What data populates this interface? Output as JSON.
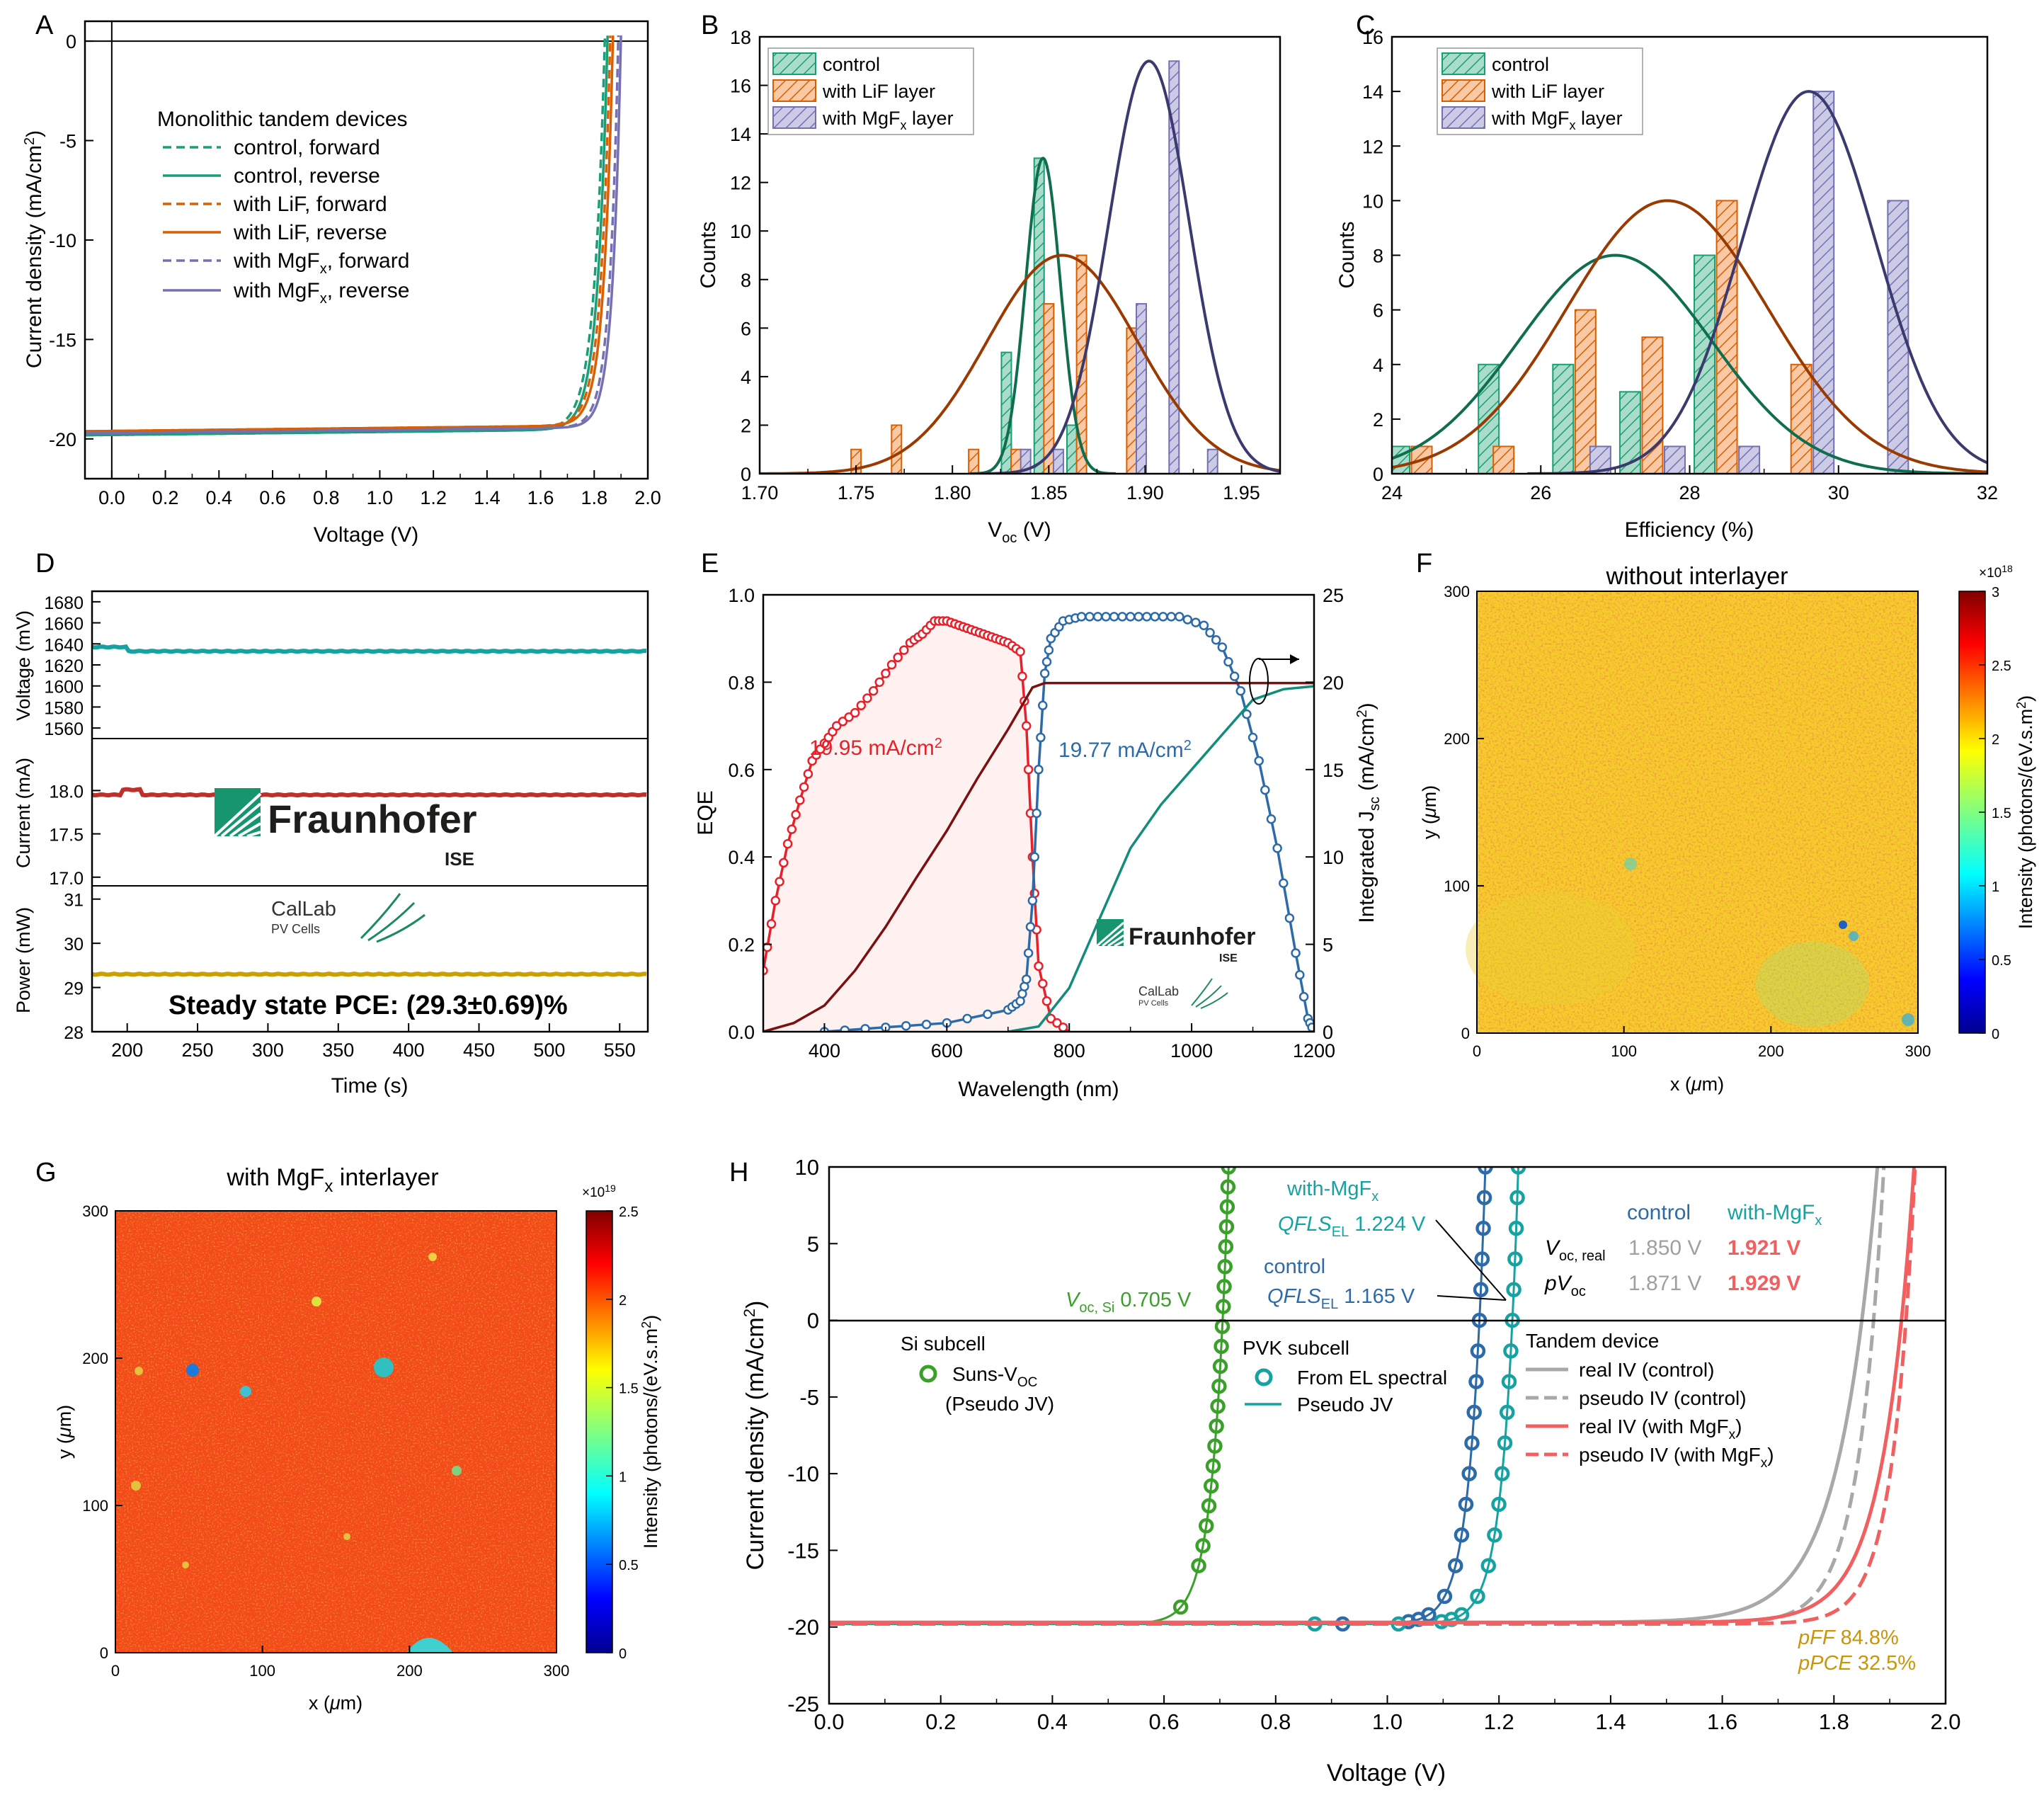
{
  "chart_data": [
    {
      "panel": "A",
      "type": "line",
      "xlabel": "Voltage (V)",
      "ylabel": "Current density (mA/cm²)",
      "xlim": [
        -0.1,
        2.0
      ],
      "ylim": [
        -22,
        1
      ],
      "xticks": [
        "0.0",
        "0.2",
        "0.4",
        "0.6",
        "0.8",
        "1.0",
        "1.2",
        "1.4",
        "1.6",
        "1.8",
        "2.0"
      ],
      "yticks": [
        "0",
        "-5",
        "-10",
        "-15",
        "-20"
      ],
      "legend_title": "Monolithic tandem devices",
      "series": [
        {
          "name": "control, forward",
          "color": "#1a9e77",
          "dash": true,
          "voc": 1.84,
          "jsc": -19.8,
          "n": 0.04
        },
        {
          "name": "control, reverse",
          "color": "#1a9e77",
          "dash": false,
          "voc": 1.85,
          "jsc": -19.8,
          "n": 0.038
        },
        {
          "name": "with LiF, forward",
          "color": "#d95f02",
          "dash": true,
          "voc": 1.86,
          "jsc": -19.6,
          "n": 0.036
        },
        {
          "name": "with LiF, reverse",
          "color": "#d95f02",
          "dash": false,
          "voc": 1.87,
          "jsc": -19.6,
          "n": 0.035
        },
        {
          "name": "with MgFx, forward",
          "color": "#7570b3",
          "dash": true,
          "voc": 1.89,
          "jsc": -19.7,
          "n": 0.033
        },
        {
          "name": "with MgFx, reverse",
          "color": "#7570b3",
          "dash": false,
          "voc": 1.9,
          "jsc": -19.7,
          "n": 0.032
        }
      ]
    },
    {
      "panel": "B",
      "type": "bar",
      "xlabel": "Voc (V)",
      "ylabel": "Counts",
      "xlim": [
        1.7,
        1.97
      ],
      "ylim": [
        0,
        18
      ],
      "xticks": [
        "1.70",
        "1.75",
        "1.80",
        "1.85",
        "1.90",
        "1.95"
      ],
      "yticks": [
        "0",
        "2",
        "4",
        "6",
        "8",
        "10",
        "12",
        "14",
        "16",
        "18"
      ],
      "series": [
        {
          "name": "control",
          "color": "#1a9e77",
          "bars": [
            [
              1.828,
              5
            ],
            [
              1.845,
              13
            ],
            [
              1.862,
              2
            ]
          ],
          "fit": {
            "mu": 1.847,
            "sigma": 0.009,
            "amp": 13
          }
        },
        {
          "name": "with LiF layer",
          "color": "#d95f02",
          "bars": [
            [
              1.75,
              1
            ],
            [
              1.771,
              2
            ],
            [
              1.811,
              1
            ],
            [
              1.833,
              1
            ],
            [
              1.85,
              7
            ],
            [
              1.867,
              9
            ],
            [
              1.893,
              6
            ]
          ],
          "fit": {
            "mu": 1.857,
            "sigma": 0.039,
            "amp": 9
          }
        },
        {
          "name": "with MgFx layer",
          "color": "#7570b3",
          "bars": [
            [
              1.838,
              1
            ],
            [
              1.855,
              1
            ],
            [
              1.898,
              7
            ],
            [
              1.915,
              17
            ],
            [
              1.935,
              1
            ]
          ],
          "fit": {
            "mu": 1.902,
            "sigma": 0.021,
            "amp": 17
          }
        }
      ]
    },
    {
      "panel": "C",
      "type": "bar",
      "xlabel": "Efficiency (%)",
      "ylabel": "Counts",
      "xlim": [
        24,
        32
      ],
      "ylim": [
        0,
        16
      ],
      "xticks": [
        "24",
        "26",
        "28",
        "30",
        "32"
      ],
      "yticks": [
        "0",
        "2",
        "4",
        "6",
        "8",
        "10",
        "12",
        "14",
        "16"
      ],
      "series": [
        {
          "name": "control",
          "color": "#1a9e77",
          "bars": [
            [
              24.1,
              1
            ],
            [
              25.3,
              4
            ],
            [
              26.3,
              4
            ],
            [
              27.2,
              3
            ],
            [
              28.2,
              8
            ]
          ],
          "fit": {
            "mu": 27.0,
            "sigma": 1.3,
            "amp": 8
          }
        },
        {
          "name": "with LiF layer",
          "color": "#d95f02",
          "bars": [
            [
              24.4,
              1
            ],
            [
              25.5,
              1
            ],
            [
              26.6,
              6
            ],
            [
              27.5,
              5
            ],
            [
              28.5,
              10
            ],
            [
              29.5,
              4
            ]
          ],
          "fit": {
            "mu": 27.7,
            "sigma": 1.35,
            "amp": 10
          }
        },
        {
          "name": "with MgFx layer",
          "color": "#7570b3",
          "bars": [
            [
              26.8,
              1
            ],
            [
              27.8,
              1
            ],
            [
              28.8,
              1
            ],
            [
              29.8,
              14
            ],
            [
              30.8,
              10
            ]
          ],
          "fit": {
            "mu": 29.6,
            "sigma": 0.9,
            "amp": 14
          }
        }
      ]
    },
    {
      "panel": "D",
      "type": "line",
      "xlabel": "Time (s)",
      "xlim": [
        175,
        570
      ],
      "xticks": [
        "200",
        "250",
        "300",
        "350",
        "400",
        "450",
        "500",
        "550"
      ],
      "annotation": "Steady state PCE: (29.3±0.69)%",
      "series": [
        {
          "name": "Voltage (mV)",
          "color": "#17a2a2",
          "value": 1633,
          "ylim": [
            1550,
            1690
          ],
          "yticks": [
            "1560",
            "1580",
            "1600",
            "1620",
            "1640",
            "1660",
            "1680"
          ]
        },
        {
          "name": "Current (mA)",
          "color": "#c0302a",
          "value": 17.95,
          "ylim": [
            16.9,
            18.6
          ],
          "yticks": [
            "17.0",
            "17.5",
            "18.0"
          ]
        },
        {
          "name": "Power (mW)",
          "color": "#c8a000",
          "value": 29.3,
          "ylim": [
            28,
            31.3
          ],
          "yticks": [
            "28",
            "29",
            "30",
            "31"
          ]
        }
      ]
    },
    {
      "panel": "E",
      "type": "line",
      "xlabel": "Wavelength (nm)",
      "ylabel": "EQE",
      "ylabel_right": "Integrated Jsc (mA/cm²)",
      "xlim": [
        300,
        1200
      ],
      "ylim": [
        0,
        1.0
      ],
      "ylim_right": [
        0,
        25
      ],
      "xticks": [
        "400",
        "600",
        "800",
        "1000",
        "1200"
      ],
      "yticks": [
        "0.0",
        "0.2",
        "0.4",
        "0.6",
        "0.8",
        "1.0"
      ],
      "yticks_right": [
        "0",
        "5",
        "10",
        "15",
        "20",
        "25"
      ],
      "series": [
        {
          "name": "19.95 mA/cm²",
          "color": "#e8202a",
          "x": [
            300,
            320,
            340,
            360,
            380,
            400,
            420,
            450,
            480,
            510,
            540,
            560,
            580,
            600,
            620,
            640,
            660,
            680,
            700,
            720,
            730,
            740,
            750,
            770,
            800
          ],
          "y": [
            0.14,
            0.3,
            0.43,
            0.53,
            0.62,
            0.66,
            0.7,
            0.73,
            0.78,
            0.84,
            0.89,
            0.91,
            0.94,
            0.94,
            0.93,
            0.92,
            0.91,
            0.9,
            0.89,
            0.87,
            0.7,
            0.4,
            0.15,
            0.03,
            0.0
          ]
        },
        {
          "name": "19.77 mA/cm²",
          "color": "#2d6aa8",
          "x": [
            400,
            500,
            600,
            700,
            720,
            730,
            740,
            750,
            760,
            770,
            790,
            820,
            860,
            900,
            940,
            980,
            1020,
            1050,
            1080,
            1110,
            1140,
            1170,
            1190,
            1200
          ],
          "y": [
            0.0,
            0.01,
            0.02,
            0.05,
            0.07,
            0.12,
            0.3,
            0.6,
            0.82,
            0.9,
            0.94,
            0.95,
            0.95,
            0.95,
            0.95,
            0.95,
            0.93,
            0.88,
            0.78,
            0.62,
            0.42,
            0.18,
            0.03,
            0.0
          ]
        },
        {
          "name": "integrated top",
          "color": "#7a1010",
          "x": [
            300,
            350,
            400,
            450,
            500,
            550,
            600,
            650,
            700,
            740,
            760,
            1200
          ],
          "y": [
            0,
            0.5,
            1.5,
            3.5,
            6.0,
            8.8,
            11.5,
            14.5,
            17.3,
            19.7,
            19.95,
            19.95
          ]
        },
        {
          "name": "integrated bottom",
          "color": "#138c7c",
          "x": [
            700,
            750,
            800,
            850,
            900,
            950,
            1000,
            1050,
            1100,
            1150,
            1200
          ],
          "y": [
            0,
            0.3,
            2.5,
            6.5,
            10.5,
            13.0,
            15.0,
            17.0,
            19.0,
            19.6,
            19.77
          ]
        }
      ]
    },
    {
      "panel": "F",
      "type": "heatmap",
      "title": "without interlayer",
      "xlabel": "x (μm)",
      "ylabel": "y (μm)",
      "xlim": [
        0,
        300
      ],
      "ylim": [
        0,
        300
      ],
      "xticks": [
        "0",
        "100",
        "200",
        "300"
      ],
      "yticks": [
        "0",
        "100",
        "200",
        "300"
      ],
      "colorbar_label": "Intensity (photons/(eV.s.m²)",
      "colorbar_exponent": "×10¹⁸",
      "colorbar_ticks": [
        "0",
        "0.5",
        "1",
        "1.5",
        "2",
        "2.5",
        "3"
      ]
    },
    {
      "panel": "G",
      "type": "heatmap",
      "title": "with MgFx interlayer",
      "xlabel": "x (μm)",
      "ylabel": "y (μm)",
      "xlim": [
        0,
        300
      ],
      "ylim": [
        0,
        300
      ],
      "xticks": [
        "0",
        "100",
        "200",
        "300"
      ],
      "yticks": [
        "0",
        "100",
        "200",
        "300"
      ],
      "colorbar_label": "Intensity (photons/(eV.s.m²)",
      "colorbar_exponent": "×10¹⁹",
      "colorbar_ticks": [
        "0",
        "0.5",
        "1",
        "1.5",
        "2",
        "2.5"
      ]
    },
    {
      "panel": "H",
      "type": "line",
      "xlabel": "Voltage (V)",
      "ylabel": "Current density (mA/cm²)",
      "xlim": [
        0,
        2.0
      ],
      "ylim": [
        -25,
        10
      ],
      "xticks": [
        "0.0",
        "0.2",
        "0.4",
        "0.6",
        "0.8",
        "1.0",
        "1.2",
        "1.4",
        "1.6",
        "1.8",
        "2.0"
      ],
      "yticks": [
        "10",
        "5",
        "0",
        "-5",
        "-10",
        "-15",
        "-20",
        "-25"
      ],
      "series": [
        {
          "name": "Suns-VOC (Pseudo JV)",
          "color": "#3aa02a",
          "voc": 0.705,
          "jsc": -19.8,
          "n": 0.026
        },
        {
          "name": "From EL spectral (control)",
          "color": "#2d6aa8",
          "voc": 1.165,
          "jsc": -19.8,
          "n": 0.026
        },
        {
          "name": "From EL spectral (with-MgFx)",
          "color": "#17a2a2",
          "voc": 1.224,
          "jsc": -19.8,
          "n": 0.026
        },
        {
          "name": "real IV (control)",
          "color": "#a8a8a8",
          "dash": false,
          "voc": 1.85,
          "jsc": -19.7,
          "n": 0.068
        },
        {
          "name": "pseudo IV (control)",
          "color": "#a8a8a8",
          "dash": true,
          "voc": 1.871,
          "jsc": -19.8,
          "n": 0.045
        },
        {
          "name": "real IV (with MgFx)",
          "color": "#f06060",
          "dash": false,
          "voc": 1.921,
          "jsc": -19.7,
          "n": 0.055
        },
        {
          "name": "pseudo IV (with MgFx)",
          "color": "#f06060",
          "dash": true,
          "voc": 1.929,
          "jsc": -19.8,
          "n": 0.04
        }
      ],
      "table": {
        "col1": "control",
        "col2": "with-MgFx",
        "row1_label": "Voc, real",
        "row1": [
          "1.850 V",
          "1.921 V"
        ],
        "row2_label": "pVoc",
        "row2": [
          "1.871 V",
          "1.929 V"
        ]
      },
      "annotations": [
        "Voc, Si 0.705 V",
        "with-MgFx QFLSEL 1.224 V",
        "control QFLSEL 1.165 V",
        "pFF 84.8%",
        "pPCE 32.5%"
      ]
    }
  ],
  "panels": {
    "A": "A",
    "B": "B",
    "C": "C",
    "D": "D",
    "E": "E",
    "F": "F",
    "G": "G",
    "H": "H"
  },
  "text": {
    "a_ylabel": "Current density (mA/cm",
    "a_xlabel": "Voltage (V)",
    "a_legend_title": "Monolithic tandem devices",
    "a_leg1": "control, forward",
    "a_leg2": "control, reverse",
    "a_leg3": "with LiF, forward",
    "a_leg4": "with LiF, reverse",
    "a_leg5a": "with MgF",
    "a_leg5b": ", forward",
    "a_leg6a": "with MgF",
    "a_leg6b": ", reverse",
    "bc_leg1": "control",
    "bc_leg2": "with LiF layer",
    "bc_leg3a": "with MgF",
    "bc_leg3b": " layer",
    "counts": "Counts",
    "b_xlabel_a": "V",
    "b_xlabel_sub": "oc",
    "b_xlabel_b": " (V)",
    "c_xlabel": "Efficiency (%)",
    "d_yl_v": "Voltage (mV)",
    "d_yl_i": "Current (mA)",
    "d_yl_p": "Power (mW)",
    "d_xlabel": "Time (s)",
    "d_pce": "Steady state PCE: (29.3±0.69)%",
    "logo_name": "Fraunhofer",
    "logo_ise": "ISE",
    "calab": "CalLab",
    "pvcells": "PV Cells",
    "e_ylabel": "EQE",
    "e_ylabel_r_a": "Integrated J",
    "e_ylabel_r_sub": "sc",
    "e_ylabel_r_b": " (mA/cm",
    "e_xlabel": "Wavelength (nm)",
    "e_lab_red": "19.95 mA/cm",
    "e_lab_blue": "19.77 mA/cm",
    "f_title": "without interlayer",
    "g_title_a": "with MgF",
    "g_title_b": " interlayer",
    "map_x": "x (",
    "map_mu": "μ",
    "map_xb": "m)",
    "map_y": "y (",
    "cbar_label": "Intensity (photons/(eV.s.m",
    "cbar_exp_f": "×10",
    "cbar_exp_f_sup": "18",
    "cbar_exp_g_sup": "19",
    "h_vocsi_a": "V",
    "h_vocsi_sub": "oc, Si",
    "h_vocsi_b": " 0.705 V",
    "h_mgfx_a": "with-MgF",
    "h_qfls_ital": "QFLS",
    "h_qfls_sub": "EL",
    "h_mgfx_val": " 1.224 V",
    "h_ctrl_a": "control",
    "h_ctrl_val": " 1.165 V",
    "h_tab_control": "control",
    "h_tab_mgfx_a": "with-MgF",
    "h_tab_voc_a": "V",
    "h_tab_voc_sub": "oc, real",
    "h_tab_pvoc_a": "pV",
    "h_tab_pvoc_sub": "oc",
    "h_v1": "1.850 V",
    "h_v2": "1.921 V",
    "h_v3": "1.871 V",
    "h_v4": "1.929 V",
    "h_si": "Si subcell",
    "h_suns_a": "Suns-V",
    "h_suns_sub": "OC",
    "h_suns_b": "(Pseudo JV)",
    "h_pvk": "PVK subcell",
    "h_el": "From EL spectral",
    "h_pjv": "Pseudo JV",
    "h_tandem": "Tandem device",
    "h_l1": "real IV (control)",
    "h_l2": "pseudo IV (control)",
    "h_l3a": "real IV (with MgF",
    "h_l4a": "pseudo IV (with MgF",
    "h_close": ")",
    "h_pff_a": "pFF",
    "h_pff_b": " 84.8%",
    "h_ppce_a": "pPCE",
    "h_ppce_b": " 32.5%",
    "h_xlabel": "Voltage (V)",
    "h_ylabel": "Current density (mA/cm",
    "sub_x": "x",
    "sup_2": "2",
    "close_paren": ")"
  },
  "colors": {
    "control": "#1a9e77",
    "lif": "#d95f02",
    "mgfx": "#7570b3",
    "gray": "#a8a8a8",
    "salmon": "#f06060",
    "gold": "#c8960a"
  }
}
